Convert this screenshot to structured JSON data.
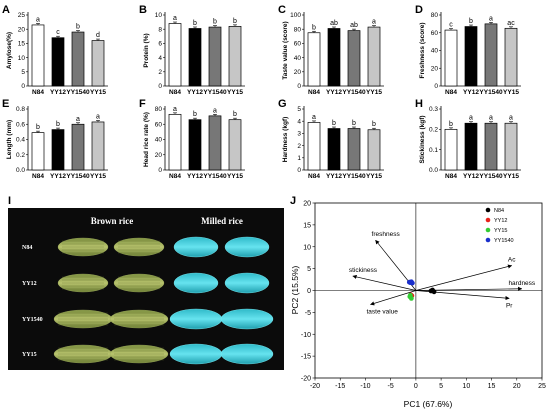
{
  "figure_letters": {
    "I": "I",
    "J": "J"
  },
  "chart_data": [
    {
      "panel": "A",
      "type": "bar",
      "ylabel": "Amylose(%)",
      "categories": [
        "N84",
        "YY12",
        "YY1540",
        "YY15"
      ],
      "values": [
        21.5,
        17.0,
        19.0,
        16.0
      ],
      "significance": [
        "a",
        "c",
        "b",
        "d"
      ],
      "ylim": [
        0,
        25
      ],
      "yticks": [
        0,
        5,
        10,
        15,
        20,
        25
      ]
    },
    {
      "panel": "B",
      "type": "bar",
      "ylabel": "Protein (%)",
      "categories": [
        "N84",
        "YY12",
        "YY1540",
        "YY15"
      ],
      "values": [
        8.8,
        8.1,
        8.3,
        8.4
      ],
      "significance": [
        "a",
        "b",
        "b",
        "b"
      ],
      "ylim": [
        0,
        10
      ],
      "yticks": [
        0,
        2,
        4,
        6,
        8,
        10
      ]
    },
    {
      "panel": "C",
      "type": "bar",
      "ylabel": "Taste value (score)",
      "categories": [
        "N84",
        "YY12",
        "YY1540",
        "YY15"
      ],
      "values": [
        75,
        81,
        78,
        83
      ],
      "significance": [
        "b",
        "ab",
        "ab",
        "a"
      ],
      "ylim": [
        0,
        100
      ],
      "yticks": [
        0,
        20,
        40,
        60,
        80,
        100
      ]
    },
    {
      "panel": "D",
      "type": "bar",
      "ylabel": "Freshness (score)",
      "categories": [
        "N84",
        "YY12",
        "YY1540",
        "YY15"
      ],
      "values": [
        63,
        67,
        70,
        65
      ],
      "significance": [
        "c",
        "b",
        "a",
        "ac"
      ],
      "ylim": [
        0,
        80
      ],
      "yticks": [
        0,
        20,
        40,
        60,
        80
      ]
    },
    {
      "panel": "E",
      "type": "bar",
      "ylabel": "Length (mm)",
      "categories": [
        "N84",
        "YY12",
        "YY1540",
        "YY15"
      ],
      "values": [
        0.49,
        0.53,
        0.6,
        0.63
      ],
      "significance": [
        "b",
        "b",
        "a",
        "a"
      ],
      "ylim": [
        0,
        0.8
      ],
      "yticks": [
        0.0,
        0.2,
        0.4,
        0.6,
        0.8
      ]
    },
    {
      "panel": "F",
      "type": "bar",
      "ylabel": "Head rice rate (%)",
      "categories": [
        "N84",
        "YY12",
        "YY1540",
        "YY15"
      ],
      "values": [
        73,
        66,
        71,
        66
      ],
      "significance": [
        "a",
        "b",
        "a",
        "b"
      ],
      "ylim": [
        0,
        80
      ],
      "yticks": [
        0,
        20,
        40,
        60,
        80
      ]
    },
    {
      "panel": "G",
      "type": "bar",
      "ylabel": "Hardness (kgf)",
      "categories": [
        "N84",
        "YY12",
        "YY1540",
        "YY15"
      ],
      "values": [
        3.9,
        3.4,
        3.4,
        3.3
      ],
      "significance": [
        "a",
        "b",
        "b",
        "b"
      ],
      "ylim": [
        0,
        5
      ],
      "yticks": [
        0,
        1,
        2,
        3,
        4,
        5
      ]
    },
    {
      "panel": "H",
      "type": "bar",
      "ylabel": "Stickiness (kgf)",
      "categories": [
        "N84",
        "YY12",
        "YY1540",
        "YY15"
      ],
      "values": [
        0.2,
        0.23,
        0.23,
        0.23
      ],
      "significance": [
        "b",
        "a",
        "a",
        "a"
      ],
      "ylim": [
        0,
        0.3
      ],
      "yticks": [
        0.0,
        0.1,
        0.2,
        0.3
      ]
    },
    {
      "panel": "J",
      "type": "scatter",
      "xlabel": "PC1 (67.6%)",
      "ylabel": "PC2 (15.5%)",
      "xlim": [
        -20,
        25
      ],
      "ylim": [
        -20,
        20
      ],
      "xticks": [
        -20,
        -15,
        -10,
        -5,
        0,
        5,
        10,
        15,
        20,
        25
      ],
      "yticks": [
        -20,
        -15,
        -10,
        -5,
        0,
        5,
        10,
        15,
        20
      ],
      "legend_position": "top-right",
      "series": [
        {
          "name": "N84",
          "color": "#000000",
          "points": [
            [
              3.0,
              -0.1
            ],
            [
              3.6,
              -0.3
            ],
            [
              3.3,
              0.1
            ]
          ]
        },
        {
          "name": "YY12",
          "color": "#e8221b",
          "points": [
            [
              -1.0,
              -1.0
            ],
            [
              -0.8,
              -1.2
            ]
          ]
        },
        {
          "name": "YY15",
          "color": "#33cc33",
          "points": [
            [
              -1.2,
              -1.4
            ],
            [
              -0.9,
              -1.8
            ],
            [
              -1.1,
              -1.1
            ]
          ]
        },
        {
          "name": "YY1540",
          "color": "#1a2fcc",
          "points": [
            [
              -1.3,
              1.9
            ],
            [
              -0.9,
              2.0
            ],
            [
              -0.7,
              1.7
            ],
            [
              -1.1,
              1.8
            ]
          ]
        }
      ],
      "loadings": [
        {
          "name": "freshness",
          "x": -8.0,
          "y": 11.5
        },
        {
          "name": "stickiness",
          "x": -12.5,
          "y": 3.3
        },
        {
          "name": "taste value",
          "x": -9.0,
          "y": -3.2
        },
        {
          "name": "Ac",
          "x": 19.0,
          "y": 5.7
        },
        {
          "name": "hardness",
          "x": 21.0,
          "y": 0.4
        },
        {
          "name": "Pr",
          "x": 18.5,
          "y": -1.8
        }
      ]
    }
  ],
  "rice_image": {
    "headers": [
      "Brown rice",
      "Milled rice"
    ],
    "rows": [
      "N84",
      "YY12",
      "YY1540",
      "YY15"
    ]
  }
}
